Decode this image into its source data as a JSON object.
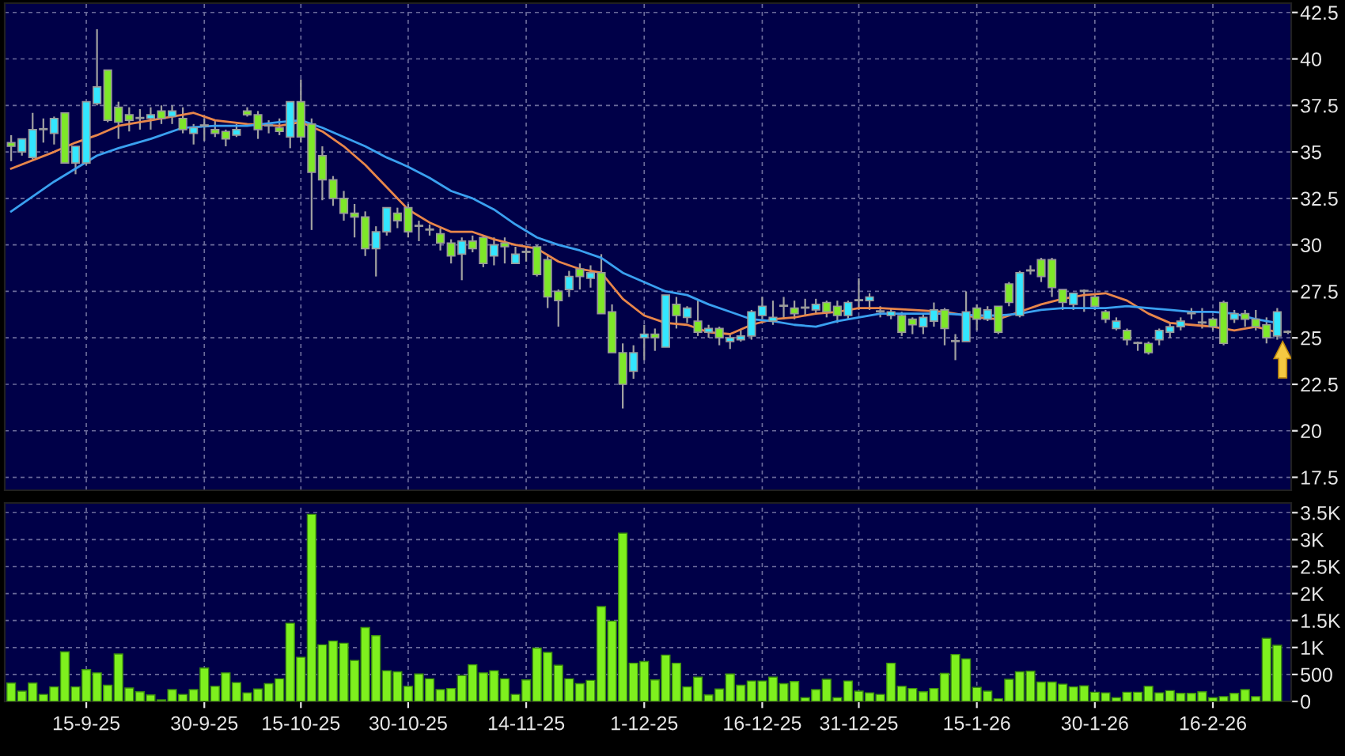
{
  "chart_data": [
    {
      "type": "candlestick",
      "categories": [
        null,
        null,
        null,
        null,
        null,
        null,
        null,
        null,
        null,
        null,
        null,
        null,
        null,
        null,
        null,
        null,
        null,
        null,
        null,
        null,
        null,
        null,
        null,
        null,
        null,
        null,
        null,
        null,
        null,
        null,
        null,
        null,
        null,
        null,
        null,
        null,
        null,
        null,
        null,
        null,
        null,
        null,
        null,
        null,
        null,
        null,
        null,
        null,
        null,
        null,
        null,
        null,
        null,
        null,
        null,
        null,
        null,
        null,
        null,
        null,
        null,
        null,
        null,
        null,
        null,
        null,
        null,
        null,
        null,
        null,
        null,
        null,
        null,
        null,
        null,
        null,
        null,
        null,
        null,
        null,
        null,
        null,
        null,
        null,
        null,
        null,
        null,
        null,
        null,
        null,
        null,
        null,
        null,
        null,
        null,
        null,
        null,
        null,
        null,
        null,
        null,
        null,
        null,
        null,
        null,
        null,
        null,
        null,
        null,
        null,
        null,
        null,
        null,
        null,
        null,
        null,
        null,
        null,
        null,
        null
      ],
      "ohlc": [
        [
          35.5,
          35.9,
          34.5,
          35.3
        ],
        [
          35.0,
          35.7,
          34.8,
          35.7
        ],
        [
          34.7,
          37.1,
          34.6,
          36.2
        ],
        [
          36.2,
          36.8,
          35.5,
          36.2
        ],
        [
          36.0,
          36.9,
          35.4,
          36.8
        ],
        [
          37.1,
          37.1,
          34.4,
          34.4
        ],
        [
          34.4,
          35.3,
          33.8,
          35.3
        ],
        [
          34.4,
          37.7,
          34.3,
          37.7
        ],
        [
          37.6,
          41.6,
          37.5,
          38.5
        ],
        [
          39.4,
          39.4,
          36.6,
          36.7
        ],
        [
          37.4,
          37.7,
          35.7,
          36.6
        ],
        [
          37.0,
          37.4,
          36.1,
          36.7
        ],
        [
          36.8,
          37.3,
          36.2,
          36.8
        ],
        [
          36.8,
          37.4,
          36.2,
          37.0
        ],
        [
          37.2,
          37.5,
          36.5,
          36.8
        ],
        [
          36.9,
          37.5,
          36.5,
          37.2
        ],
        [
          36.8,
          37.4,
          36.0,
          36.2
        ],
        [
          36.0,
          36.5,
          35.4,
          36.3
        ],
        [
          36.4,
          36.8,
          35.6,
          36.4
        ],
        [
          36.2,
          36.7,
          35.8,
          36.0
        ],
        [
          36.1,
          36.2,
          35.3,
          35.7
        ],
        [
          35.9,
          36.5,
          35.8,
          36.2
        ],
        [
          37.2,
          37.4,
          36.9,
          37.0
        ],
        [
          37.0,
          37.2,
          35.7,
          36.2
        ],
        [
          36.4,
          36.7,
          36.0,
          36.4
        ],
        [
          36.3,
          36.8,
          35.9,
          36.1
        ],
        [
          35.8,
          37.7,
          35.2,
          37.7
        ],
        [
          37.7,
          38.9,
          35.5,
          35.8
        ],
        [
          36.5,
          36.8,
          30.8,
          33.9
        ],
        [
          34.8,
          35.3,
          32.4,
          33.5
        ],
        [
          33.5,
          33.7,
          32.1,
          32.5
        ],
        [
          32.5,
          32.9,
          31.3,
          31.7
        ],
        [
          31.7,
          32.2,
          30.4,
          31.5
        ],
        [
          31.5,
          31.8,
          29.4,
          29.8
        ],
        [
          29.8,
          31.0,
          28.3,
          30.7
        ],
        [
          30.7,
          32.0,
          30.5,
          32.0
        ],
        [
          31.7,
          32.0,
          30.9,
          31.3
        ],
        [
          32.0,
          32.2,
          30.4,
          30.7
        ],
        [
          31.0,
          31.3,
          30.2,
          31.0
        ],
        [
          30.8,
          31.1,
          30.5,
          30.8
        ],
        [
          30.6,
          30.9,
          29.7,
          30.1
        ],
        [
          30.1,
          30.3,
          29.0,
          29.4
        ],
        [
          29.5,
          30.4,
          28.1,
          30.2
        ],
        [
          30.2,
          30.5,
          29.6,
          29.8
        ],
        [
          30.4,
          30.5,
          28.8,
          29.0
        ],
        [
          29.4,
          30.4,
          28.9,
          30.0
        ],
        [
          30.1,
          30.4,
          29.0,
          29.9
        ],
        [
          29.0,
          29.9,
          29.0,
          29.5
        ],
        [
          29.6,
          29.9,
          29.1,
          29.6
        ],
        [
          29.9,
          30.0,
          28.3,
          28.4
        ],
        [
          29.2,
          29.5,
          26.6,
          27.2
        ],
        [
          27.5,
          27.6,
          25.6,
          27.0
        ],
        [
          27.6,
          28.6,
          27.2,
          28.3
        ],
        [
          28.7,
          29.0,
          27.6,
          28.3
        ],
        [
          28.2,
          28.9,
          27.7,
          28.5
        ],
        [
          28.5,
          29.5,
          26.3,
          26.3
        ],
        [
          26.4,
          26.8,
          24.2,
          24.2
        ],
        [
          24.2,
          24.7,
          21.2,
          22.5
        ],
        [
          23.2,
          24.6,
          22.8,
          24.2
        ],
        [
          25.0,
          25.7,
          23.8,
          25.2
        ],
        [
          25.2,
          25.5,
          24.3,
          25.0
        ],
        [
          24.5,
          27.3,
          24.5,
          27.3
        ],
        [
          26.8,
          27.2,
          25.5,
          26.2
        ],
        [
          26.1,
          26.7,
          25.8,
          26.6
        ],
        [
          25.9,
          27.0,
          25.1,
          25.3
        ],
        [
          25.3,
          25.7,
          25.0,
          25.5
        ],
        [
          25.5,
          25.6,
          24.6,
          25.0
        ],
        [
          24.8,
          25.2,
          24.4,
          25.0
        ],
        [
          24.9,
          25.4,
          24.8,
          25.1
        ],
        [
          25.1,
          26.5,
          24.9,
          26.4
        ],
        [
          26.2,
          27.2,
          26.0,
          26.7
        ],
        [
          25.9,
          27.0,
          25.7,
          26.1
        ],
        [
          26.7,
          27.2,
          26.0,
          26.7
        ],
        [
          26.6,
          27.0,
          26.0,
          26.3
        ],
        [
          26.6,
          27.1,
          26.2,
          26.6
        ],
        [
          26.5,
          27.1,
          26.3,
          26.8
        ],
        [
          26.9,
          27.0,
          26.1,
          26.4
        ],
        [
          26.7,
          27.0,
          25.8,
          26.2
        ],
        [
          26.2,
          27.0,
          26.0,
          26.9
        ],
        [
          27.0,
          28.2,
          26.5,
          27.0
        ],
        [
          27.0,
          27.4,
          26.5,
          27.2
        ],
        [
          26.4,
          26.7,
          26.1,
          26.4
        ],
        [
          26.2,
          26.6,
          26.0,
          26.4
        ],
        [
          26.2,
          26.4,
          25.1,
          25.3
        ],
        [
          26.0,
          26.1,
          25.2,
          25.7
        ],
        [
          25.6,
          26.3,
          25.2,
          26.1
        ],
        [
          25.9,
          26.9,
          25.6,
          26.5
        ],
        [
          26.5,
          26.6,
          24.6,
          25.5
        ],
        [
          24.8,
          25.2,
          23.8,
          24.8
        ],
        [
          24.8,
          27.5,
          24.8,
          26.4
        ],
        [
          26.6,
          26.8,
          25.4,
          26.0
        ],
        [
          26.0,
          26.7,
          25.9,
          26.5
        ],
        [
          26.7,
          26.7,
          25.2,
          25.3
        ],
        [
          27.9,
          28.0,
          26.7,
          26.9
        ],
        [
          26.2,
          28.6,
          26.1,
          28.5
        ],
        [
          28.6,
          28.9,
          28.4,
          28.6
        ],
        [
          29.2,
          29.3,
          28.0,
          28.3
        ],
        [
          29.2,
          29.3,
          27.2,
          27.7
        ],
        [
          27.6,
          27.6,
          26.5,
          26.9
        ],
        [
          26.8,
          27.4,
          26.5,
          27.4
        ],
        [
          27.5,
          27.6,
          26.4,
          27.5
        ],
        [
          27.2,
          27.4,
          26.5,
          26.7
        ],
        [
          26.4,
          26.5,
          25.8,
          26.0
        ],
        [
          25.5,
          26.1,
          25.4,
          25.9
        ],
        [
          25.4,
          25.5,
          24.6,
          24.9
        ],
        [
          24.7,
          24.8,
          24.3,
          24.7
        ],
        [
          24.7,
          24.8,
          24.1,
          24.2
        ],
        [
          24.9,
          25.5,
          24.6,
          25.4
        ],
        [
          25.3,
          25.8,
          25.0,
          25.6
        ],
        [
          25.6,
          26.1,
          25.4,
          25.9
        ],
        [
          26.3,
          26.6,
          26.0,
          26.3
        ],
        [
          25.8,
          26.6,
          25.5,
          25.8
        ],
        [
          26.0,
          26.1,
          25.4,
          25.6
        ],
        [
          26.9,
          27.0,
          24.6,
          24.7
        ],
        [
          26.0,
          26.5,
          25.8,
          26.3
        ],
        [
          26.3,
          26.5,
          25.6,
          26.0
        ],
        [
          26.0,
          26.5,
          25.4,
          25.6
        ],
        [
          25.7,
          26.1,
          24.7,
          25.0
        ],
        [
          25.1,
          26.6,
          24.9,
          26.4
        ],
        [
          25.3,
          25.4,
          25.2,
          25.3
        ]
      ],
      "colors": [
        "#7ee829",
        "#33e6ff",
        "#33e6ff",
        "#a8a8a8",
        "#33e6ff",
        "#7ee829",
        "#33e6ff",
        "#33e6ff",
        "#33e6ff",
        "#7ee829",
        "#7ee829",
        "#7ee829",
        "#a8a8a8",
        "#33e6ff",
        "#7ee829",
        "#33e6ff",
        "#7ee829",
        "#33e6ff",
        "#a8a8a8",
        "#7ee829",
        "#7ee829",
        "#33e6ff",
        "#7ee829",
        "#7ee829",
        "#a8a8a8",
        "#7ee829",
        "#33e6ff",
        "#7ee829",
        "#7ee829",
        "#7ee829",
        "#7ee829",
        "#7ee829",
        "#7ee829",
        "#7ee829",
        "#33e6ff",
        "#33e6ff",
        "#7ee829",
        "#7ee829",
        "#a8a8a8",
        "#a8a8a8",
        "#7ee829",
        "#7ee829",
        "#33e6ff",
        "#7ee829",
        "#7ee829",
        "#33e6ff",
        "#7ee829",
        "#33e6ff",
        "#a8a8a8",
        "#7ee829",
        "#7ee829",
        "#7ee829",
        "#33e6ff",
        "#7ee829",
        "#33e6ff",
        "#7ee829",
        "#7ee829",
        "#7ee829",
        "#33e6ff",
        "#33e6ff",
        "#7ee829",
        "#33e6ff",
        "#7ee829",
        "#33e6ff",
        "#7ee829",
        "#33e6ff",
        "#7ee829",
        "#33e6ff",
        "#33e6ff",
        "#33e6ff",
        "#33e6ff",
        "#33e6ff",
        "#a8a8a8",
        "#7ee829",
        "#a8a8a8",
        "#33e6ff",
        "#7ee829",
        "#7ee829",
        "#33e6ff",
        "#a8a8a8",
        "#33e6ff",
        "#a8a8a8",
        "#33e6ff",
        "#7ee829",
        "#7ee829",
        "#33e6ff",
        "#33e6ff",
        "#7ee829",
        "#a8a8a8",
        "#33e6ff",
        "#7ee829",
        "#33e6ff",
        "#7ee829",
        "#7ee829",
        "#33e6ff",
        "#a8a8a8",
        "#7ee829",
        "#7ee829",
        "#7ee829",
        "#33e6ff",
        "#a8a8a8",
        "#7ee829",
        "#7ee829",
        "#33e6ff",
        "#7ee829",
        "#a8a8a8",
        "#7ee829",
        "#33e6ff",
        "#33e6ff",
        "#33e6ff",
        "#a8a8a8",
        "#a8a8a8",
        "#7ee829",
        "#7ee829",
        "#33e6ff",
        "#7ee829",
        "#7ee829",
        "#7ee829",
        "#33e6ff",
        "#a8a8a8"
      ],
      "series": [
        {
          "type": "line",
          "color": "#e8864a",
          "values": [
            34.1,
            null,
            null,
            null,
            35.0,
            null,
            35.5,
            null,
            35.9,
            null,
            36.4,
            null,
            null,
            36.7,
            null,
            null,
            37.0,
            37.1,
            null,
            36.7,
            null,
            null,
            36.5,
            null,
            null,
            36.4,
            null,
            36.6,
            null,
            36.1,
            null,
            35.3,
            null,
            34.3,
            null,
            33.1,
            null,
            31.9,
            null,
            31.2,
            null,
            30.7,
            null,
            30.7,
            null,
            30.3,
            null,
            30.0,
            null,
            29.8,
            null,
            29.1,
            null,
            28.7,
            null,
            28.5,
            null,
            27.1,
            null,
            26.2,
            null,
            25.8,
            null,
            25.7,
            null,
            25.3,
            null,
            25.2,
            null,
            25.7,
            null,
            26.0,
            null,
            26.1,
            null,
            26.3,
            null,
            26.4,
            null,
            26.6,
            null,
            26.6,
            null,
            null,
            26.5,
            null,
            null,
            26.4,
            null,
            null,
            26.1,
            null,
            26.0,
            null,
            26.4,
            null,
            26.8,
            null,
            27.1,
            null,
            27.3,
            null,
            27.4,
            null,
            27.0,
            null,
            26.3,
            null,
            25.8,
            null,
            25.7,
            null,
            25.6,
            null,
            25.4,
            null,
            25.6,
            null,
            25.3,
            null
          ]
        },
        {
          "type": "line",
          "color": "#3aa0f0",
          "values": [
            31.8,
            null,
            null,
            null,
            33.4,
            null,
            34.1,
            null,
            34.8,
            null,
            35.2,
            null,
            null,
            35.7,
            null,
            null,
            36.3,
            null,
            null,
            36.4,
            null,
            null,
            36.4,
            null,
            null,
            36.6,
            null,
            36.7,
            null,
            36.3,
            null,
            35.8,
            null,
            35.3,
            null,
            34.7,
            null,
            34.2,
            null,
            33.6,
            null,
            32.9,
            null,
            32.5,
            null,
            31.9,
            null,
            31.1,
            null,
            30.4,
            null,
            30.0,
            null,
            29.7,
            null,
            29.3,
            null,
            28.5,
            null,
            28.0,
            null,
            27.5,
            null,
            27.3,
            null,
            26.8,
            null,
            26.4,
            null,
            26.0,
            null,
            25.9,
            null,
            25.7,
            null,
            25.6,
            null,
            25.9,
            null,
            26.1,
            null,
            26.3,
            null,
            null,
            26.3,
            null,
            null,
            26.3,
            null,
            null,
            26.2,
            null,
            26.2,
            null,
            26.3,
            null,
            26.5,
            null,
            26.6,
            null,
            26.6,
            null,
            26.6,
            null,
            26.7,
            null,
            26.6,
            null,
            26.5,
            null,
            26.4,
            null,
            26.4,
            null,
            26.3,
            null,
            26.0,
            null,
            25.8,
            null
          ]
        }
      ],
      "ylim": [
        16.8,
        43.0
      ],
      "yticks": [
        42.5,
        40,
        37.5,
        35,
        32.5,
        30,
        27.5,
        25,
        22.5,
        20,
        17.5
      ],
      "grid": true,
      "tick_labels": "y"
    },
    {
      "type": "bar",
      "categories": [
        null,
        null,
        null,
        null,
        null,
        null,
        null,
        "15-9-25",
        null,
        null,
        null,
        null,
        null,
        null,
        null,
        null,
        null,
        null,
        "30-9-25",
        null,
        null,
        null,
        null,
        null,
        null,
        null,
        null,
        "15-10-25",
        null,
        null,
        null,
        null,
        null,
        null,
        null,
        null,
        null,
        "30-10-25",
        null,
        null,
        null,
        null,
        null,
        null,
        null,
        null,
        null,
        null,
        "14-11-25",
        null,
        null,
        null,
        null,
        null,
        null,
        null,
        null,
        null,
        null,
        "1-12-25",
        null,
        null,
        null,
        null,
        null,
        null,
        null,
        null,
        null,
        null,
        "16-12-25",
        null,
        null,
        null,
        null,
        null,
        null,
        null,
        null,
        "31-12-25",
        null,
        null,
        null,
        null,
        null,
        null,
        null,
        null,
        null,
        null,
        "15-1-26",
        null,
        null,
        null,
        null,
        null,
        null,
        null,
        null,
        null,
        null,
        "30-1-26",
        null,
        null,
        null,
        null,
        null,
        null,
        null,
        null,
        null,
        null,
        "16-2-26",
        null,
        null,
        null,
        null,
        null,
        null,
        null
      ],
      "values": [
        340,
        190,
        340,
        130,
        270,
        920,
        270,
        590,
        530,
        300,
        880,
        250,
        180,
        120,
        30,
        220,
        130,
        220,
        620,
        280,
        530,
        350,
        160,
        230,
        330,
        420,
        1450,
        820,
        3470,
        1050,
        1120,
        1080,
        760,
        1370,
        1220,
        570,
        550,
        280,
        510,
        420,
        220,
        240,
        480,
        680,
        530,
        570,
        420,
        130,
        400,
        990,
        910,
        670,
        420,
        330,
        390,
        1760,
        1490,
        3120,
        710,
        740,
        400,
        860,
        710,
        270,
        450,
        120,
        230,
        510,
        300,
        380,
        380,
        450,
        330,
        370,
        70,
        220,
        410,
        70,
        380,
        190,
        160,
        130,
        710,
        280,
        240,
        180,
        240,
        520,
        870,
        790,
        260,
        190,
        50,
        410,
        550,
        560,
        360,
        360,
        320,
        270,
        290,
        170,
        160,
        70,
        170,
        170,
        280,
        160,
        200,
        150,
        150,
        180,
        70,
        90,
        150,
        220,
        90,
        1170,
        1040,
        null
      ],
      "color": "#7ef01e",
      "ylim": [
        0,
        3680
      ],
      "yticks": [
        0,
        500,
        {
          "value": 1000,
          "label": "1K"
        },
        {
          "value": 1500,
          "label": "1.5K"
        },
        {
          "value": 2000,
          "label": "2K"
        },
        {
          "value": 2500,
          "label": "2.5K"
        },
        {
          "value": 3000,
          "label": "3K"
        },
        {
          "value": 3500,
          "label": "3.5K"
        }
      ],
      "grid": true
    }
  ]
}
